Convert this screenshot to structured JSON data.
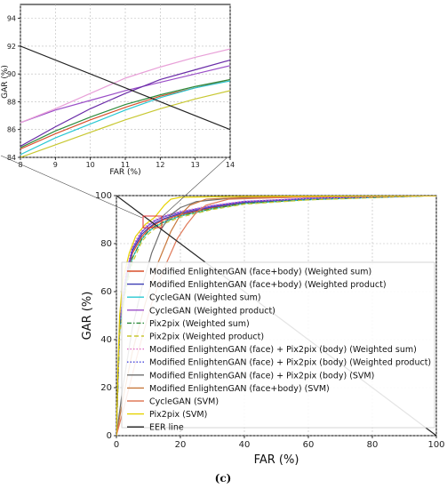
{
  "caption": "(c)",
  "chart_data": [
    {
      "id": "main",
      "type": "line",
      "xlabel": "FAR (%)",
      "ylabel": "GAR (%)",
      "xlim": [
        0,
        100
      ],
      "ylim": [
        0,
        100
      ],
      "xticks": [
        "0",
        "20",
        "40",
        "60",
        "80",
        "100"
      ],
      "yticks": [
        "0",
        "20",
        "40",
        "60",
        "80",
        "100"
      ],
      "grid": true,
      "legend_position": "center-right",
      "series": [
        {
          "name": "Modified EnlightenGAN (face+body) (Weighted sum)",
          "color": "#d94f2b",
          "dash": "solid",
          "points": [
            [
              0,
              0
            ],
            [
              1,
              45
            ],
            [
              3,
              65
            ],
            [
              5,
              76
            ],
            [
              8,
              83
            ],
            [
              10,
              86
            ],
            [
              12,
              88
            ],
            [
              15,
              90
            ],
            [
              20,
              92
            ],
            [
              30,
              95
            ],
            [
              40,
              97
            ],
            [
              60,
              98.5
            ],
            [
              80,
              99.3
            ],
            [
              100,
              100
            ]
          ]
        },
        {
          "name": "Modified EnlightenGAN (face+body) (Weighted product)",
          "color": "#3c3cb4",
          "dash": "solid",
          "points": [
            [
              0,
              0
            ],
            [
              1,
              46
            ],
            [
              3,
              66
            ],
            [
              5,
              77
            ],
            [
              8,
              84
            ],
            [
              10,
              86.5
            ],
            [
              12,
              88.5
            ],
            [
              15,
              90.5
            ],
            [
              20,
              92.5
            ],
            [
              30,
              95.3
            ],
            [
              40,
              97.2
            ],
            [
              60,
              98.7
            ],
            [
              80,
              99.4
            ],
            [
              100,
              100
            ]
          ]
        },
        {
          "name": "CycleGAN (Weighted sum)",
          "color": "#28c8d2",
          "dash": "solid",
          "points": [
            [
              0,
              0
            ],
            [
              1,
              44
            ],
            [
              3,
              63
            ],
            [
              5,
              74
            ],
            [
              8,
              82
            ],
            [
              10,
              85
            ],
            [
              12,
              87
            ],
            [
              15,
              89
            ],
            [
              20,
              91.5
            ],
            [
              30,
              94.5
            ],
            [
              40,
              96.7
            ],
            [
              60,
              98.3
            ],
            [
              80,
              99.2
            ],
            [
              100,
              100
            ]
          ]
        },
        {
          "name": "CycleGAN (Weighted product)",
          "color": "#9b4fc8",
          "dash": "solid",
          "points": [
            [
              0,
              0
            ],
            [
              1,
              47
            ],
            [
              3,
              67
            ],
            [
              5,
              78
            ],
            [
              8,
              85
            ],
            [
              10,
              87.5
            ],
            [
              12,
              89.3
            ],
            [
              15,
              91.2
            ],
            [
              20,
              93
            ],
            [
              30,
              95.7
            ],
            [
              40,
              97.5
            ],
            [
              60,
              98.8
            ],
            [
              80,
              99.5
            ],
            [
              100,
              100
            ]
          ]
        },
        {
          "name": "Pix2pix (Weighted sum)",
          "color": "#2e8b3c",
          "dash": "dashdot",
          "points": [
            [
              0,
              0
            ],
            [
              1,
              44
            ],
            [
              3,
              63
            ],
            [
              5,
              74
            ],
            [
              8,
              82
            ],
            [
              10,
              85.2
            ],
            [
              12,
              87.2
            ],
            [
              15,
              89.2
            ],
            [
              20,
              91.6
            ],
            [
              30,
              94.6
            ],
            [
              40,
              96.7
            ],
            [
              60,
              98.3
            ],
            [
              80,
              99.2
            ],
            [
              100,
              100
            ]
          ]
        },
        {
          "name": "Pix2pix (Weighted product)",
          "color": "#c8c832",
          "dash": "dashed",
          "points": [
            [
              0,
              0
            ],
            [
              1,
              42
            ],
            [
              3,
              61
            ],
            [
              5,
              72
            ],
            [
              8,
              81
            ],
            [
              10,
              84
            ],
            [
              12,
              86.2
            ],
            [
              15,
              88.4
            ],
            [
              20,
              91
            ],
            [
              30,
              94.2
            ],
            [
              40,
              96.4
            ],
            [
              60,
              98.2
            ],
            [
              80,
              99.1
            ],
            [
              100,
              100
            ]
          ]
        },
        {
          "name": "Modified EnlightenGAN (face) + Pix2pix (body) (Weighted sum)",
          "color": "#e070c8",
          "dash": "dotted",
          "points": [
            [
              0,
              0
            ],
            [
              1,
              48
            ],
            [
              3,
              68
            ],
            [
              5,
              79
            ],
            [
              8,
              86
            ],
            [
              10,
              88.4
            ],
            [
              12,
              90
            ],
            [
              15,
              91.8
            ],
            [
              20,
              93.4
            ],
            [
              30,
              96
            ],
            [
              40,
              97.7
            ],
            [
              60,
              98.9
            ],
            [
              80,
              99.5
            ],
            [
              100,
              100
            ]
          ]
        },
        {
          "name": "Modified EnlightenGAN (face) + Pix2pix (body) (Weighted product)",
          "color": "#4646dc",
          "dash": "dotted",
          "points": [
            [
              0,
              0
            ],
            [
              1,
              47
            ],
            [
              3,
              67
            ],
            [
              5,
              78
            ],
            [
              8,
              85
            ],
            [
              10,
              87.8
            ],
            [
              12,
              89.6
            ],
            [
              15,
              91.4
            ],
            [
              20,
              93.2
            ],
            [
              30,
              95.8
            ],
            [
              40,
              97.6
            ],
            [
              60,
              98.8
            ],
            [
              80,
              99.5
            ],
            [
              100,
              100
            ]
          ]
        },
        {
          "name": "Modified EnlightenGAN (face) + Pix2pix (body) (SVM)",
          "color": "#6e6e6e",
          "dash": "solid",
          "points": [
            [
              0,
              0
            ],
            [
              2,
              20
            ],
            [
              5,
              45
            ],
            [
              8,
              62
            ],
            [
              11,
              76
            ],
            [
              14,
              86
            ],
            [
              17,
              92
            ],
            [
              20,
              95
            ],
            [
              25,
              97.5
            ],
            [
              35,
              98.8
            ],
            [
              60,
              99.4
            ],
            [
              100,
              100
            ]
          ]
        },
        {
          "name": "Modified EnlightenGAN (face+body) (SVM)",
          "color": "#c8783c",
          "dash": "solid",
          "points": [
            [
              0,
              0
            ],
            [
              2,
              15
            ],
            [
              5,
              35
            ],
            [
              9,
              55
            ],
            [
              13,
              72
            ],
            [
              17,
              85
            ],
            [
              20,
              92
            ],
            [
              23,
              96
            ],
            [
              28,
              98.5
            ],
            [
              40,
              99.3
            ],
            [
              70,
              99.7
            ],
            [
              100,
              100
            ]
          ]
        },
        {
          "name": "CycleGAN (SVM)",
          "color": "#e07a5a",
          "dash": "solid",
          "points": [
            [
              0,
              0
            ],
            [
              3,
              15
            ],
            [
              7,
              36
            ],
            [
              11,
              55
            ],
            [
              15,
              70
            ],
            [
              19,
              82
            ],
            [
              22,
              88
            ],
            [
              25,
              93
            ],
            [
              28,
              96
            ],
            [
              35,
              98.5
            ],
            [
              60,
              99.5
            ],
            [
              100,
              100
            ]
          ]
        },
        {
          "name": "Pix2pix (SVM)",
          "color": "#e6d200",
          "dash": "solid",
          "points": [
            [
              0,
              0
            ],
            [
              0.5,
              30
            ],
            [
              1,
              50
            ],
            [
              2,
              65
            ],
            [
              4,
              76
            ],
            [
              6,
              83
            ],
            [
              9,
              88
            ],
            [
              12,
              91
            ],
            [
              15,
              96
            ],
            [
              17,
              98.5
            ],
            [
              20,
              99.3
            ],
            [
              40,
              99.7
            ],
            [
              100,
              100
            ]
          ]
        },
        {
          "name": "EER line",
          "color": "#222222",
          "dash": "solid",
          "points": [
            [
              0,
              100
            ],
            [
              100,
              0
            ]
          ]
        }
      ]
    },
    {
      "id": "inset",
      "type": "line",
      "xlabel": "FAR (%)",
      "ylabel": "GAR (%)",
      "xlim": [
        8,
        14
      ],
      "ylim": [
        84,
        95
      ],
      "xticks": [
        "8",
        "9",
        "10",
        "11",
        "12",
        "13",
        "14"
      ],
      "yticks": [
        "84",
        "86",
        "88",
        "90",
        "92",
        "94"
      ],
      "grid": true,
      "series": [
        {
          "name": "CycleGAN (Weighted product)",
          "color": "#9b4fc8",
          "points": [
            [
              8,
              86.5
            ],
            [
              9,
              87.4
            ],
            [
              10,
              88.1
            ],
            [
              11,
              88.8
            ],
            [
              12,
              89.4
            ],
            [
              13,
              90.0
            ],
            [
              14,
              90.6
            ]
          ]
        },
        {
          "name": "Modified EnlightenGAN (face) + Pix2pix (body) (Weighted sum)",
          "color": "#e8a0d8",
          "points": [
            [
              8,
              86.5
            ],
            [
              9,
              87.5
            ],
            [
              10,
              88.6
            ],
            [
              11,
              89.7
            ],
            [
              12,
              90.5
            ],
            [
              13,
              91.2
            ],
            [
              14,
              91.8
            ]
          ]
        },
        {
          "name": "Modified EnlightenGAN (face+body) (Weighted product)",
          "color": "#6a2ca8",
          "points": [
            [
              8,
              84.8
            ],
            [
              9,
              86.2
            ],
            [
              10,
              87.5
            ],
            [
              11,
              88.6
            ],
            [
              12,
              89.6
            ],
            [
              13,
              90.3
            ],
            [
              14,
              91.0
            ]
          ]
        },
        {
          "name": "Modified EnlightenGAN (face+body) (Weighted sum)",
          "color": "#d94f2b",
          "points": [
            [
              8,
              84.6
            ],
            [
              9,
              85.7
            ],
            [
              10,
              86.7
            ],
            [
              11,
              87.6
            ],
            [
              12,
              88.4
            ],
            [
              13,
              89.0
            ],
            [
              14,
              89.6
            ]
          ]
        },
        {
          "name": "Pix2pix (Weighted sum)",
          "color": "#2e8b3c",
          "points": [
            [
              8,
              84.7
            ],
            [
              9,
              85.9
            ],
            [
              10,
              86.9
            ],
            [
              11,
              87.8
            ],
            [
              12,
              88.5
            ],
            [
              13,
              89.1
            ],
            [
              14,
              89.6
            ]
          ]
        },
        {
          "name": "CycleGAN (Weighted sum)",
          "color": "#28c8d2",
          "points": [
            [
              8,
              84.2
            ],
            [
              9,
              85.4
            ],
            [
              10,
              86.4
            ],
            [
              11,
              87.4
            ],
            [
              12,
              88.3
            ],
            [
              13,
              89.0
            ],
            [
              14,
              89.5
            ]
          ]
        },
        {
          "name": "Pix2pix (Weighted product)",
          "color": "#c8c832",
          "points": [
            [
              8,
              84.0
            ],
            [
              9,
              84.9
            ],
            [
              10,
              85.8
            ],
            [
              11,
              86.7
            ],
            [
              12,
              87.5
            ],
            [
              13,
              88.2
            ],
            [
              14,
              88.8
            ]
          ]
        },
        {
          "name": "EER line",
          "color": "#222222",
          "points": [
            [
              8,
              92
            ],
            [
              14,
              86
            ]
          ]
        }
      ]
    }
  ]
}
